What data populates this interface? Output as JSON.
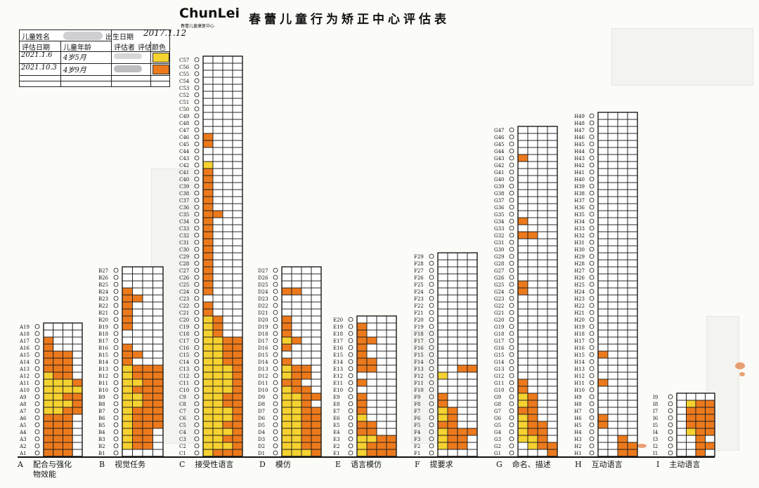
{
  "header": {
    "logo": "ChunLei",
    "logo_sub": "春蕾儿童康复中心",
    "title": "春蕾儿童行为矫正中心评估表"
  },
  "info": {
    "child_name_label": "儿童姓名",
    "birth_date_label": "出生日期",
    "birth_date_value": "2017.1.12",
    "assess_date_label": "评估日期",
    "child_age_label": "儿童年龄",
    "assessor_label": "评估者",
    "color_label": "评估颜色",
    "rows": [
      {
        "date": "2021.1.6",
        "age": "4岁5月",
        "color": "#f5d230"
      },
      {
        "date": "2021.10.3",
        "age": "4岁9月",
        "color": "#ec7a1c"
      }
    ]
  },
  "colors": {
    "yellow": "#f5d230",
    "orange": "#ec7a1c",
    "grid": "#1a1a1a"
  },
  "categories": [
    {
      "letter": "A",
      "name": "配合与强化物效能",
      "prefix": "A",
      "count": 19,
      "cells": [
        "ooo-",
        "ooo-",
        "ooo-",
        "ooo-",
        "ooo-",
        "ooo-",
        "yyoo",
        "yyyo",
        "yyoo",
        "yyyy",
        "yyyo",
        "yoo-",
        "ooo-",
        "ooo-",
        "ooo-",
        "o---",
        "o---",
        "----",
        "----"
      ]
    },
    {
      "letter": "B",
      "name": "视觉任务",
      "prefix": "B",
      "count": 27,
      "cells": [
        "----",
        "yoo-",
        "yoo-",
        "yoo-",
        "yooo",
        "yooo",
        "yooo",
        "yyoo",
        "yyoo",
        "yooo",
        "yyoo",
        "yooo",
        "yooo",
        "o---",
        "oo--",
        "o---",
        "----",
        "----",
        "o---",
        "o---",
        "o---",
        "o---",
        "oo--",
        "o---",
        "----",
        "----",
        "----"
      ]
    },
    {
      "letter": "C",
      "name": "接受性语言",
      "prefix": "C",
      "count": 57,
      "cells": [
        "yooo",
        "yyyo",
        "yyoo",
        "yyyo",
        "yyoo",
        "yyyo",
        "yyyo",
        "yyoo",
        "yyoo",
        "yyyo",
        "yyyo",
        "yyyo",
        "yyyo",
        "yyoo",
        "yyoo",
        "yyoo",
        "yyoo",
        "yo--",
        "yo--",
        "yo--",
        "o---",
        "o---",
        "----",
        "o---",
        "o---",
        "o---",
        "o---",
        "o---",
        "o---",
        "o---",
        "o---",
        "o---",
        "o---",
        "o---",
        "oo--",
        "o---",
        "o---",
        "o---",
        "o---",
        "o---",
        "o---",
        "y---",
        "----",
        "----",
        "o---",
        "o---",
        "----",
        "----",
        "----",
        "----",
        "----",
        "----",
        "----",
        "----",
        "----",
        "----",
        "----"
      ]
    },
    {
      "letter": "D",
      "name": "模仿",
      "prefix": "D",
      "count": 27,
      "cells": [
        "yyyo",
        "yyoo",
        "yyoo",
        "yyoo",
        "yyoo",
        "yyoo",
        "yyoo",
        "yyo-",
        "yyoo",
        "yoo-",
        "oo--",
        "yoo-",
        "yoo-",
        "o---",
        "----",
        "o---",
        "yo--",
        "o---",
        "o---",
        "o---",
        "----",
        "----",
        "----",
        "oo--",
        "----",
        "----",
        "----"
      ]
    },
    {
      "letter": "E",
      "name": "语言模仿",
      "prefix": "E",
      "count": 20,
      "cells": [
        "yooo",
        "yooo",
        "yyoo",
        "oo--",
        "oo--",
        "y---",
        "o---",
        "o---",
        "o---",
        "----",
        "o---",
        "----",
        "oo--",
        "oo--",
        "o---",
        "o---",
        "oo--",
        "o---",
        "o---",
        "----"
      ]
    },
    {
      "letter": "F",
      "name": "提要求",
      "prefix": "F",
      "count": 29,
      "cells": [
        "----",
        "yoo-",
        "yoo-",
        "yooo",
        "oo--",
        "yo--",
        "yo--",
        "o---",
        "o---",
        "----",
        "----",
        "y---",
        "--oo",
        "----",
        "----",
        "----",
        "----",
        "----",
        "----",
        "----",
        "----",
        "----",
        "----",
        "----",
        "----",
        "----",
        "----",
        "----",
        "----"
      ]
    },
    {
      "letter": "G",
      "name": "命名、描述",
      "prefix": "G",
      "count": 47,
      "cells": [
        "---o",
        "-yoo",
        "yyo-",
        "yoo-",
        "yoo-",
        "yo--",
        "oo--",
        "yo--",
        "yo--",
        "o---",
        "o---",
        "----",
        "----",
        "----",
        "----",
        "----",
        "----",
        "----",
        "----",
        "----",
        "----",
        "----",
        "----",
        "o---",
        "o---",
        "----",
        "----",
        "----",
        "----",
        "----",
        "----",
        "oo--",
        "----",
        "o---",
        "----",
        "----",
        "----",
        "----",
        "----",
        "----",
        "----",
        "----",
        "o---",
        "----",
        "----",
        "----",
        "----"
      ]
    },
    {
      "letter": "H",
      "name": "互动语言",
      "prefix": "H",
      "count": 49,
      "cells": [
        "--oo",
        "--oo",
        "--o-",
        "----",
        "o---",
        "o---",
        "----",
        "----",
        "----",
        "----",
        "o---",
        "----",
        "----",
        "----",
        "o---",
        "----",
        "----",
        "----",
        "----",
        "----",
        "----",
        "----",
        "----",
        "----",
        "----",
        "----",
        "----",
        "----",
        "----",
        "----",
        "----",
        "----",
        "----",
        "----",
        "----",
        "----",
        "----",
        "----",
        "----",
        "----",
        "----",
        "----",
        "----",
        "----",
        "----",
        "----",
        "----",
        "----",
        "----"
      ]
    },
    {
      "letter": "I",
      "name": "主动语言",
      "prefix": "I",
      "count": 9,
      "cells": [
        "--o-",
        "--oo",
        "--o-",
        "-yoo",
        "-ooo",
        "-ooo",
        "-ooo",
        "-yoo",
        "----"
      ]
    }
  ]
}
